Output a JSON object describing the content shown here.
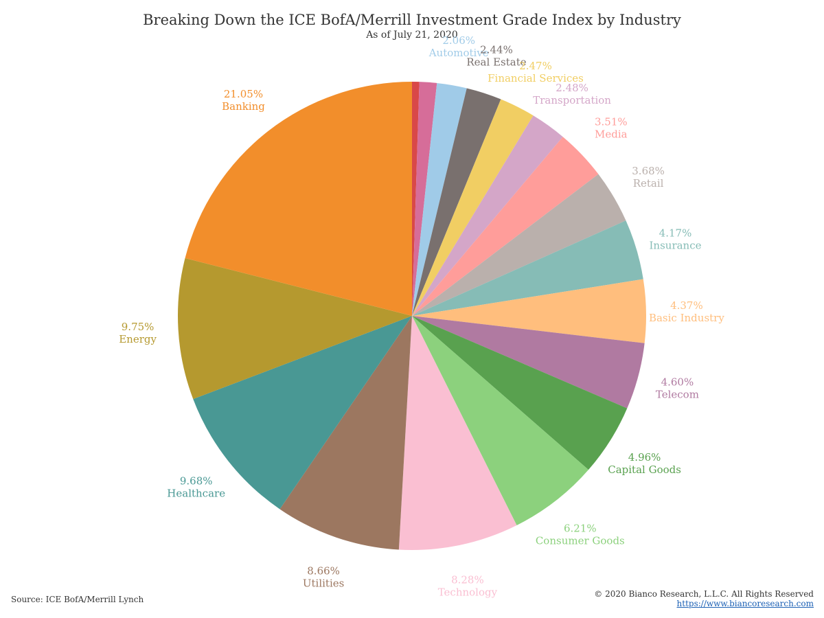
{
  "title": "Breaking Down the ICE BofA/Merrill Investment Grade Index by Industry",
  "subtitle": "As of July 21, 2020",
  "footer": {
    "source": "Source: ICE BofA/Merrill Lynch",
    "copyright": "© 2020 Bianco Research, L.L.C. All Rights Reserved",
    "url": "https://www.biancoresearch.com"
  },
  "chart_data": {
    "type": "pie",
    "title": "Breaking Down the ICE BofA/Merrill Investment Grade Index by Industry",
    "subtitle": "As of July 21, 2020",
    "start": "12 o'clock, clockwise",
    "slices": [
      {
        "name": "",
        "value": 0.5,
        "label": "",
        "color": "#d94848"
      },
      {
        "name": "",
        "value": 1.2,
        "label": "",
        "color": "#d66d99"
      },
      {
        "name": "Automotive",
        "value": 2.06,
        "label": "2.06%",
        "color": "#a0cbe8"
      },
      {
        "name": "Real Estate",
        "value": 2.44,
        "label": "2.44%",
        "color": "#79706e"
      },
      {
        "name": "Financial Services",
        "value": 2.47,
        "label": "2.47%",
        "color": "#f1ce63"
      },
      {
        "name": "Transportation",
        "value": 2.48,
        "label": "2.48%",
        "color": "#d4a6c8"
      },
      {
        "name": "Media",
        "value": 3.51,
        "label": "3.51%",
        "color": "#ff9d9a"
      },
      {
        "name": "Retail",
        "value": 3.68,
        "label": "3.68%",
        "color": "#bab0ac"
      },
      {
        "name": "Insurance",
        "value": 4.17,
        "label": "4.17%",
        "color": "#86bcb6"
      },
      {
        "name": "Basic Industry",
        "value": 4.37,
        "label": "4.37%",
        "color": "#ffbe7d"
      },
      {
        "name": "Telecom",
        "value": 4.6,
        "label": "4.60%",
        "color": "#b07aa1"
      },
      {
        "name": "Capital Goods",
        "value": 4.96,
        "label": "4.96%",
        "color": "#59a14f"
      },
      {
        "name": "Consumer Goods",
        "value": 6.21,
        "label": "6.21%",
        "color": "#8cd17d"
      },
      {
        "name": "Technology",
        "value": 8.28,
        "label": "8.28%",
        "color": "#fabfd2"
      },
      {
        "name": "Utilities",
        "value": 8.66,
        "label": "8.66%",
        "color": "#9c7760"
      },
      {
        "name": "Healthcare",
        "value": 9.68,
        "label": "9.68%",
        "color": "#499894"
      },
      {
        "name": "Energy",
        "value": 9.75,
        "label": "9.75%",
        "color": "#b5992f"
      },
      {
        "name": "Banking",
        "value": 21.05,
        "label": "21.05%",
        "color": "#f28e2b"
      }
    ]
  }
}
